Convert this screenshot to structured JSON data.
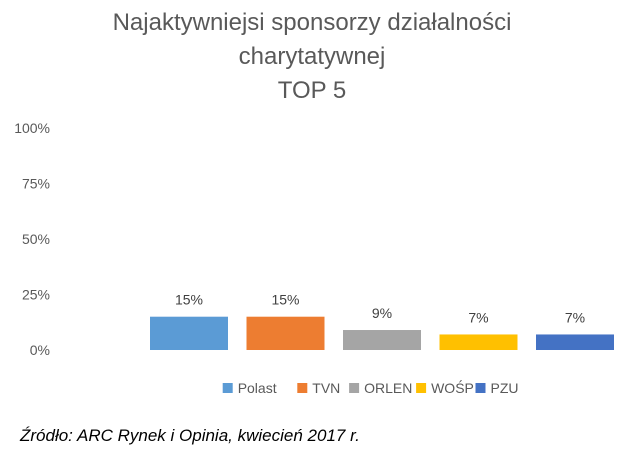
{
  "chart_data": {
    "type": "bar",
    "title": [
      "Najaktywniejsi sponsorzy działalności",
      "charytatywnej",
      "TOP 5"
    ],
    "categories": [
      "Polast",
      "TVN",
      "ORLEN",
      "WOŚP",
      "PZU"
    ],
    "values": [
      15,
      15,
      9,
      7,
      7
    ],
    "data_labels": [
      "15%",
      "15%",
      "9%",
      "7%",
      "7%"
    ],
    "colors": [
      "#5b9bd5",
      "#ed7d31",
      "#a5a5a5",
      "#ffc000",
      "#4472c4"
    ],
    "y_ticks": [
      "0%",
      "25%",
      "50%",
      "75%",
      "100%"
    ],
    "ylim": [
      0,
      100
    ],
    "grid": false,
    "legend_position": "bottom"
  },
  "source": "Źródło: ARC Rynek i Opinia, kwiecień 2017 r."
}
